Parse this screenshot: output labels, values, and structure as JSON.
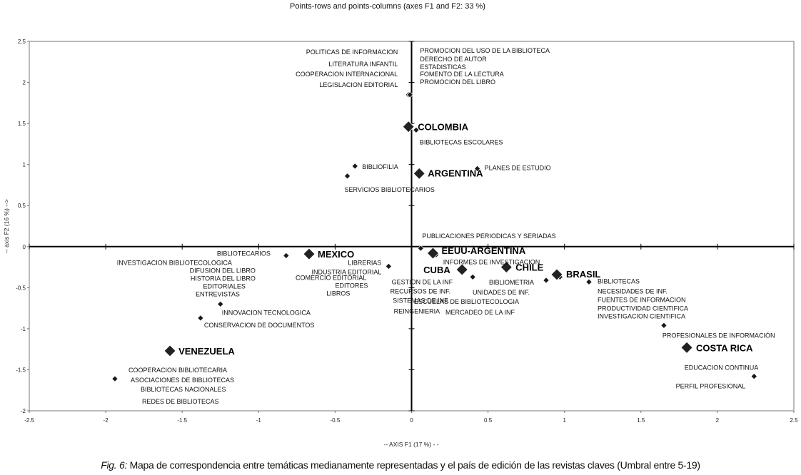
{
  "chart_data": {
    "type": "scatter",
    "title": "Points-rows and points-columns (axes F1 and F2: 33 %)",
    "xlabel": "-- AXIS F1 (17 %) - -",
    "ylabel": "-- axis F2 (16 %) -->",
    "xlim": [
      -2.5,
      2.5
    ],
    "ylim": [
      -2,
      2.5
    ],
    "xticks": [
      -2.5,
      -2,
      -1.5,
      -1,
      -0.5,
      0,
      0.5,
      1,
      1.5,
      2,
      2.5
    ],
    "yticks": [
      -2,
      -1.5,
      -1,
      -0.5,
      0,
      0.5,
      1,
      1.5,
      2,
      2.5
    ],
    "countries": [
      {
        "label": "COLOMBIA",
        "x": -0.02,
        "y": 1.46
      },
      {
        "label": "ARGENTINA",
        "x": 0.05,
        "y": 0.89
      },
      {
        "label": "MEXICO",
        "x": -0.67,
        "y": -0.09
      },
      {
        "label": "EEUU-ARGENTINA",
        "x": 0.14,
        "y": -0.08
      },
      {
        "label": "CUBA",
        "x": 0.33,
        "y": -0.28
      },
      {
        "label": "CHILE",
        "x": 0.62,
        "y": -0.25
      },
      {
        "label": "BRASIL",
        "x": 0.95,
        "y": -0.34
      },
      {
        "label": "VENEZUELA",
        "x": -1.58,
        "y": -1.27
      },
      {
        "label": "COSTA RICA",
        "x": 1.8,
        "y": -1.23
      }
    ],
    "topics": [
      {
        "x": -0.02,
        "y": 1.85,
        "labels": [
          "POLITICAS DE INFORMACION",
          "LITERATURA INFANTIL",
          "COOPERACION INTERNACIONAL",
          "LEGISLACION EDITORIAL"
        ]
      },
      {
        "x": -0.01,
        "y": 1.85,
        "labels": [
          "PROMOCION DEL USO DE LA BIBLIOTECA",
          "DERECHO DE AUTOR",
          "ESTADISTICAS",
          "FOMENTO DE LA LECTURA",
          "PROMOCION DEL LIBRO"
        ]
      },
      {
        "x": 0.03,
        "y": 1.42,
        "labels": [
          "BIBLIOTECAS ESCOLARES"
        ]
      },
      {
        "x": -0.37,
        "y": 0.98,
        "labels": [
          "BIBLIOFILIA"
        ]
      },
      {
        "x": -0.42,
        "y": 0.86,
        "labels": [
          "SERVICIOS BIBLIOTECARIOS"
        ]
      },
      {
        "x": 0.43,
        "y": 0.95,
        "labels": [
          "PLANES DE ESTUDIO"
        ]
      },
      {
        "x": 0.06,
        "y": -0.02,
        "labels": [
          "PUBLICACIONES PERIODICAS Y SERIADAS"
        ]
      },
      {
        "x": 0.16,
        "y": -0.1,
        "labels": [
          "INFORMES DE INVESTIGACION"
        ]
      },
      {
        "x": -0.82,
        "y": -0.11,
        "labels": [
          "BIBLIOTECARIOS",
          "INVESTIGACION BIBLIOTECOLOGICA",
          "DIFUSION DEL LIBRO",
          "HISTORIA DEL LIBRO",
          "EDITORIALES",
          "ENTREVISTAS"
        ]
      },
      {
        "x": -0.15,
        "y": -0.24,
        "labels": [
          "LIBRERIAS",
          "INDUSTRIA EDITORIAL",
          "COMERCIO EDITORIAL",
          "EDITORES",
          "LIBROS"
        ]
      },
      {
        "x": 0.4,
        "y": -0.37,
        "labels": [
          "GESTION DE LA INF",
          "RECURSOS DE INF.",
          "SISTEMAS DE INF.",
          "REINGENIERIA"
        ]
      },
      {
        "x": 0.88,
        "y": -0.41,
        "labels": [
          "BIBLIOMETRIA",
          "UNIDADES DE INF.",
          "ESCUELAS DE BIBLIOTECOLOGIA",
          "MERCADEO DE LA INF"
        ]
      },
      {
        "x": 0.97,
        "y": -0.37,
        "labels": []
      },
      {
        "x": 1.16,
        "y": -0.43,
        "labels": [
          "BIBLIOTECAS",
          "NECESIDADES DE INF.",
          "FUENTES DE INFORMACION",
          "PRODUCTIVIDAD CIENTIFICA",
          "INVESTIGACION CIENTIFICA"
        ]
      },
      {
        "x": 1.65,
        "y": -0.96,
        "labels": [
          "PROFESIONALES DE INFORMACIÓN"
        ]
      },
      {
        "x": -1.25,
        "y": -0.7,
        "labels": [
          "INNOVACION TECNOLOGICA"
        ]
      },
      {
        "x": -1.38,
        "y": -0.87,
        "labels": [
          "CONSERVACION DE DOCUMENTOS"
        ]
      },
      {
        "x": -1.94,
        "y": -1.61,
        "labels": [
          "COOPERACION BIBLIOTECARIA",
          "ASOCIACIONES DE BIBLIOTECAS",
          "BIBLIOTECAS NACIONALES",
          "REDES DE BIBLIOTECAS"
        ]
      },
      {
        "x": 2.24,
        "y": -1.58,
        "labels": [
          "EDUCACION CONTINUA",
          "PERFIL PROFESIONAL"
        ]
      }
    ]
  },
  "caption": {
    "fig_label": "Fig. 6:",
    "text": " Mapa de correspondencia entre temáticas medianamente representadas y el país de edición de las revistas claves (Umbral entre 5-19)"
  }
}
